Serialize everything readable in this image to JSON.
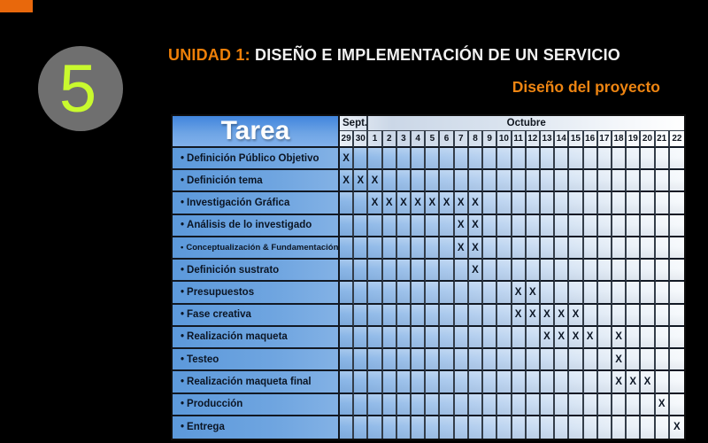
{
  "slide": {
    "number": "5",
    "title_prefix": "UNIDAD 1:",
    "title_rest": " DISEÑO E IMPLEMENTACIÓN DE UN SERVICIO",
    "subtitle": "Diseño del proyecto"
  },
  "colors": {
    "background": "#000000",
    "accent_orange": "#EE7F08",
    "corner_bar_orange": "#E8680C",
    "circle_gray": "#6F6F6F",
    "number_green": "#C9FA2E",
    "table_blue_left": "#5C99DB",
    "table_blue_right": "#F6F9FC",
    "header_blue": "#4185DD"
  },
  "table": {
    "label_header": "Tarea",
    "month_groups": [
      {
        "label": "Sept.",
        "span": 2
      },
      {
        "label": "Octubre",
        "span": 22
      }
    ],
    "days": [
      "29",
      "30",
      "1",
      "2",
      "3",
      "4",
      "5",
      "6",
      "7",
      "8",
      "9",
      "10",
      "11",
      "12",
      "13",
      "14",
      "15",
      "16",
      "17",
      "18",
      "19",
      "20",
      "21",
      "22"
    ],
    "mark_symbol": "X",
    "rows": [
      {
        "label": "Definición Público Objetivo",
        "marks": [
          "29"
        ]
      },
      {
        "label": "Definición tema",
        "marks": [
          "29",
          "30",
          "1"
        ]
      },
      {
        "label": "Investigación Gráfica",
        "marks": [
          "1",
          "2",
          "3",
          "4",
          "5",
          "6",
          "7",
          "8"
        ]
      },
      {
        "label": "Análisis de lo investigado",
        "marks": [
          "7",
          "8"
        ]
      },
      {
        "label": "Conceptualización & Fundamentación",
        "marks": [
          "7",
          "8"
        ]
      },
      {
        "label": "Definición sustrato",
        "marks": [
          "8"
        ]
      },
      {
        "label": "Presupuestos",
        "marks": [
          "11",
          "12"
        ]
      },
      {
        "label": "Fase creativa",
        "marks": [
          "11",
          "12",
          "13",
          "14",
          "15"
        ]
      },
      {
        "label": "Realización maqueta",
        "marks": [
          "13",
          "14",
          "15",
          "16",
          "18"
        ]
      },
      {
        "label": "Testeo",
        "marks": [
          "18"
        ]
      },
      {
        "label": "Realización maqueta final",
        "marks": [
          "18",
          "19",
          "20"
        ]
      },
      {
        "label": "Producción",
        "marks": [
          "21"
        ]
      },
      {
        "label": "Entrega",
        "marks": [
          "22"
        ]
      }
    ]
  }
}
